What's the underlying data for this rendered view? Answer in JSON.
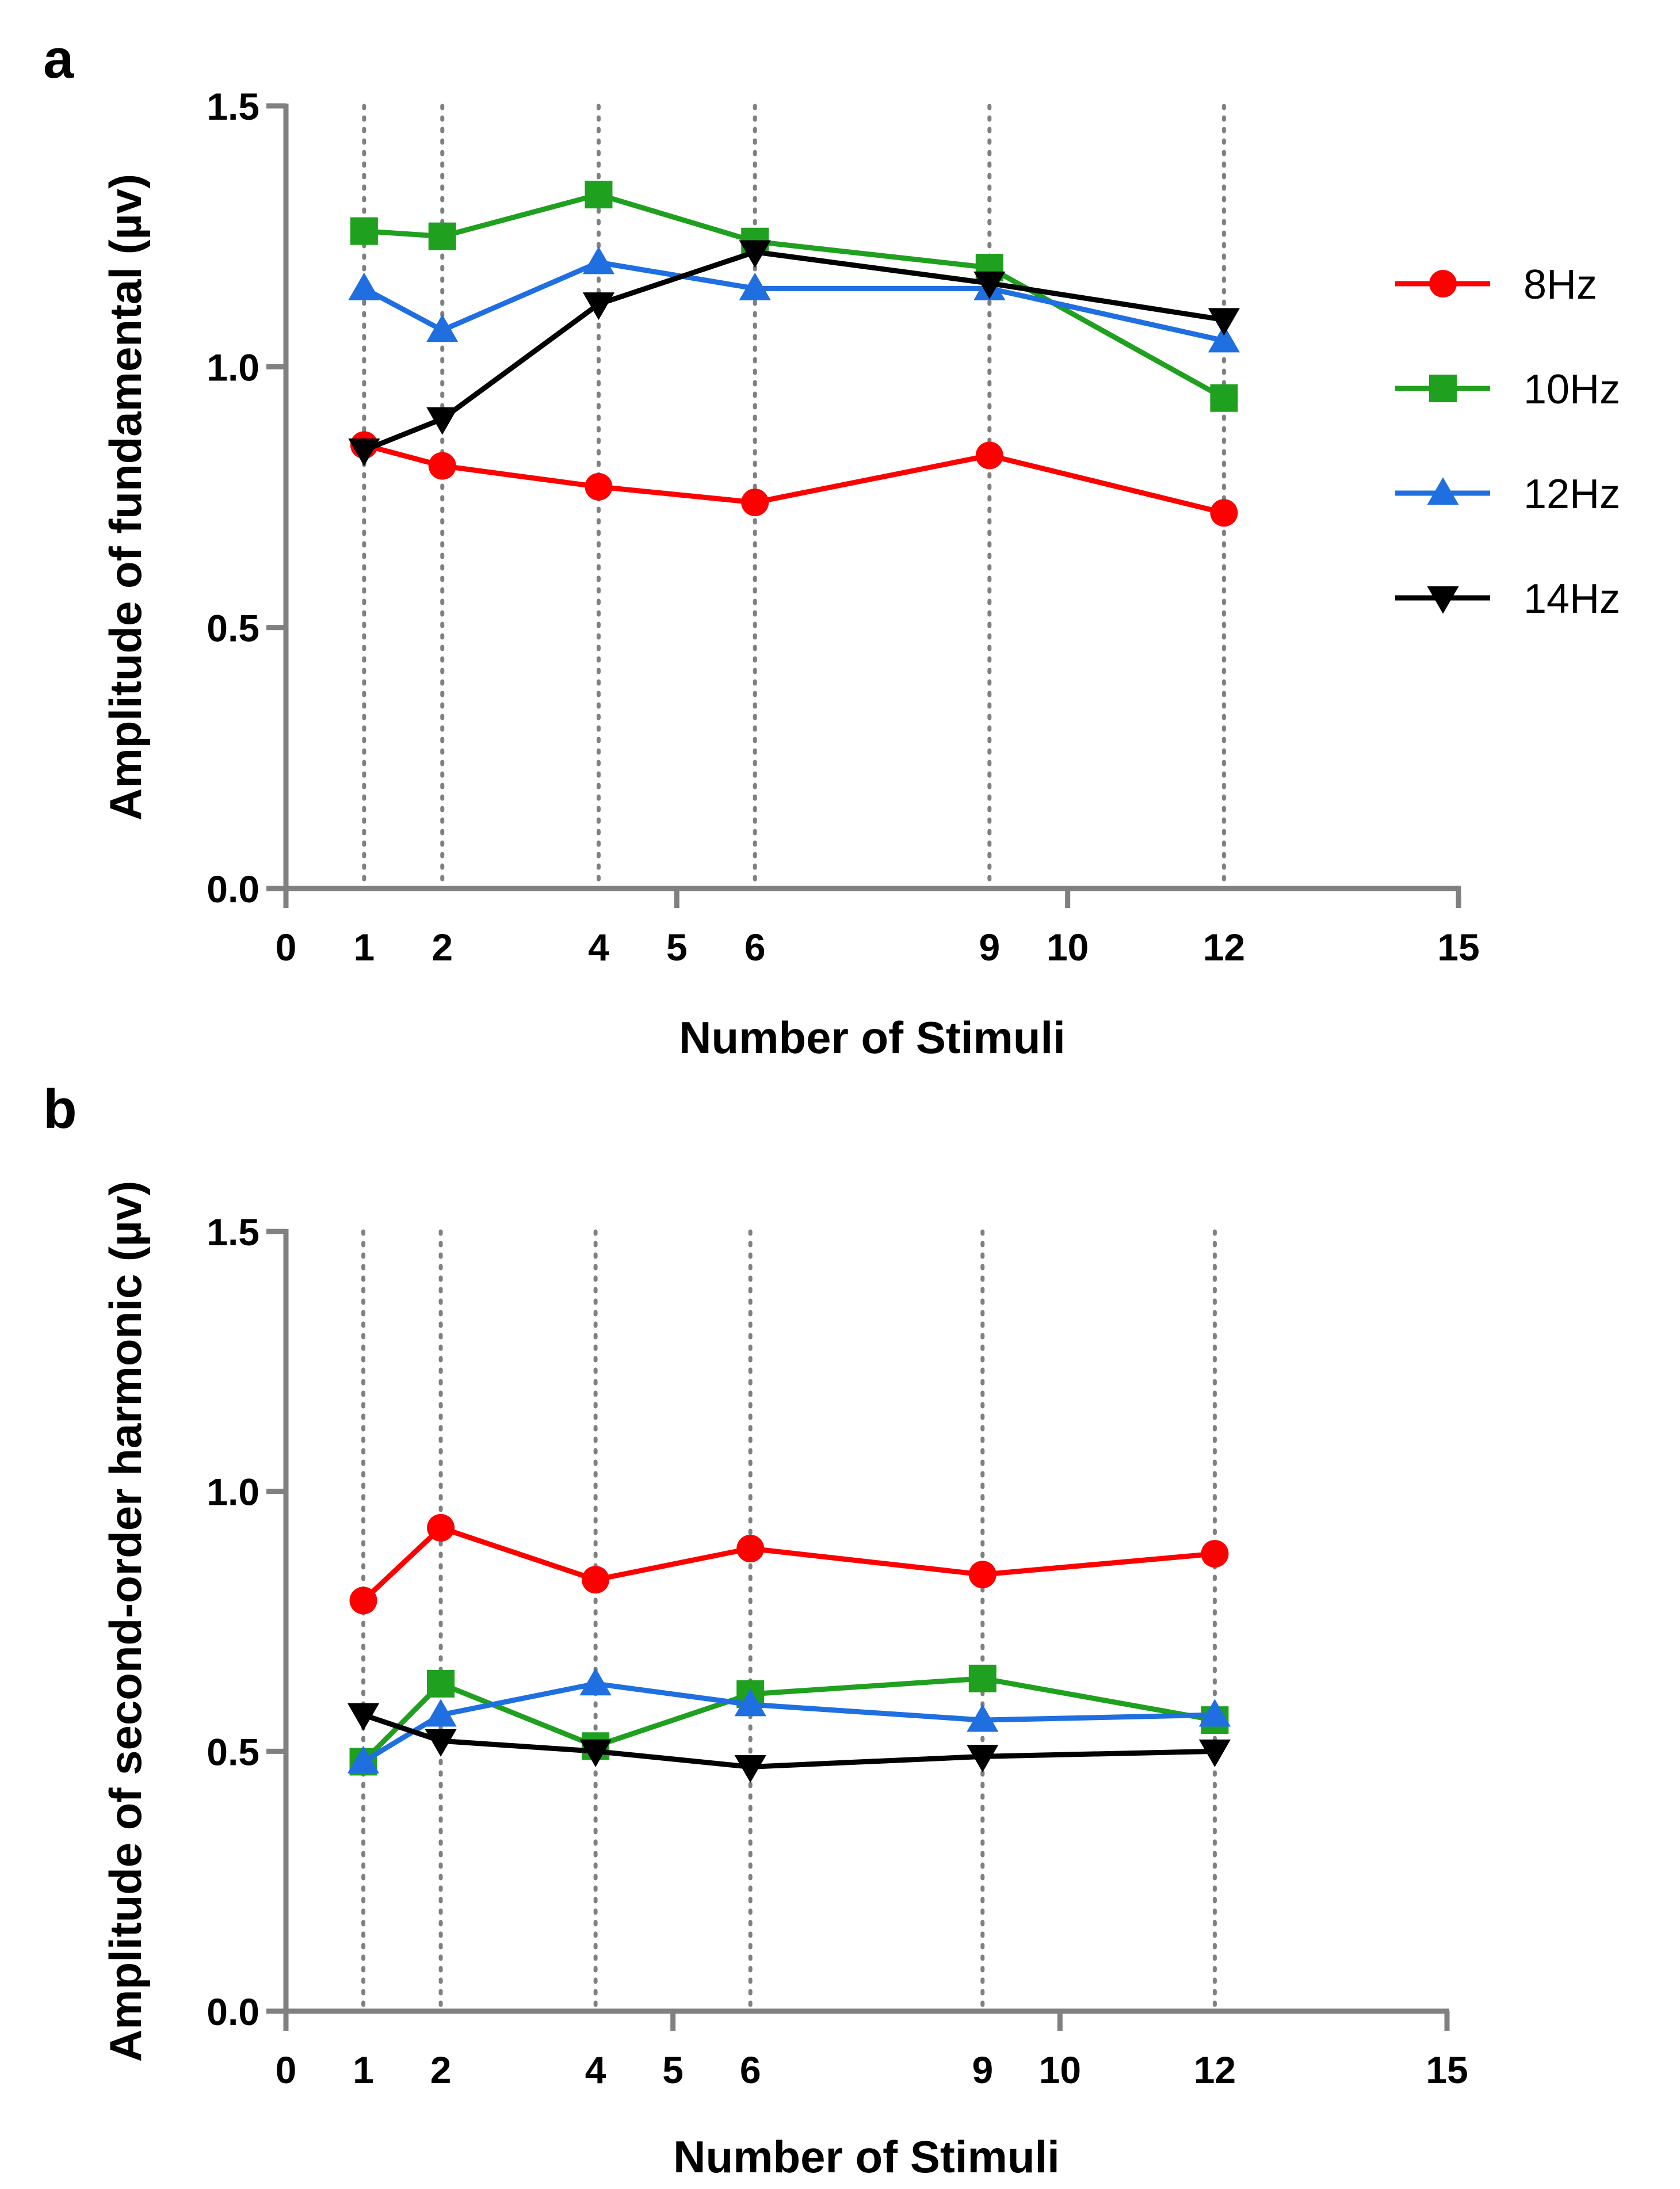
{
  "colors": {
    "8Hz": "#ff0000",
    "10Hz": "#1fa01f",
    "12Hz": "#1f6fe0",
    "14Hz": "#000000",
    "axis": "#808080",
    "gridline": "#808080"
  },
  "legend": [
    {
      "name": "8Hz",
      "marker": "circle"
    },
    {
      "name": "10Hz",
      "marker": "square"
    },
    {
      "name": "12Hz",
      "marker": "triangle-up"
    },
    {
      "name": "14Hz",
      "marker": "triangle-down"
    }
  ],
  "chart_data": [
    {
      "panel": "a",
      "type": "line",
      "xlabel": "Number of Stimuli",
      "ylabel": "Amplitude of fundamental (µv)",
      "xlim": [
        0,
        15
      ],
      "ylim": [
        0,
        1.5
      ],
      "x_ticks": [
        "0",
        "1",
        "2",
        "4",
        "5",
        "6",
        "9",
        "10",
        "12",
        "15"
      ],
      "y_ticks": [
        "0.0",
        "0.5",
        "1.0",
        "1.5"
      ],
      "dotted_vertical_lines_at": [
        1,
        2,
        4,
        6,
        9,
        12
      ],
      "x": [
        1,
        2,
        4,
        6,
        9,
        12
      ],
      "series": [
        {
          "name": "8Hz",
          "values": [
            0.85,
            0.81,
            0.77,
            0.74,
            0.83,
            0.72
          ]
        },
        {
          "name": "10Hz",
          "values": [
            1.26,
            1.25,
            1.33,
            1.24,
            1.19,
            0.94
          ]
        },
        {
          "name": "12Hz",
          "values": [
            1.15,
            1.07,
            1.2,
            1.15,
            1.15,
            1.05
          ]
        },
        {
          "name": "14Hz",
          "values": [
            0.84,
            0.9,
            1.12,
            1.22,
            1.16,
            1.09
          ]
        }
      ]
    },
    {
      "panel": "b",
      "type": "line",
      "xlabel": "Number of Stimuli",
      "ylabel": "Amplitude of second-order harmonic (µv)",
      "xlim": [
        0,
        15
      ],
      "ylim": [
        0,
        1.5
      ],
      "x_ticks": [
        "0",
        "1",
        "2",
        "4",
        "5",
        "6",
        "9",
        "10",
        "12",
        "15"
      ],
      "y_ticks": [
        "0.0",
        "0.5",
        "1.0",
        "1.5"
      ],
      "dotted_vertical_lines_at": [
        1,
        2,
        4,
        6,
        9,
        12
      ],
      "x": [
        1,
        2,
        4,
        6,
        9,
        12
      ],
      "series": [
        {
          "name": "8Hz",
          "values": [
            0.79,
            0.93,
            0.83,
            0.89,
            0.84,
            0.88
          ]
        },
        {
          "name": "10Hz",
          "values": [
            0.48,
            0.63,
            0.51,
            0.61,
            0.64,
            0.56
          ]
        },
        {
          "name": "12Hz",
          "values": [
            0.48,
            0.57,
            0.63,
            0.59,
            0.56,
            0.57
          ]
        },
        {
          "name": "14Hz",
          "values": [
            0.57,
            0.52,
            0.5,
            0.47,
            0.49,
            0.5
          ]
        }
      ]
    }
  ]
}
